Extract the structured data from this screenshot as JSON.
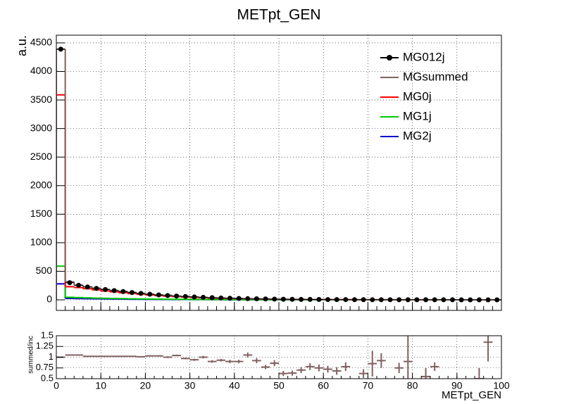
{
  "chart_data": [
    {
      "type": "histogram",
      "title": "METpt_GEN",
      "y_label": "a.u.",
      "bins": [
        0,
        2,
        4,
        6,
        8,
        10,
        12,
        14,
        16,
        18,
        20,
        22,
        24,
        26,
        28,
        30,
        32,
        34,
        36,
        38,
        40,
        42,
        44,
        46,
        48,
        50,
        52,
        54,
        56,
        58,
        60,
        62,
        64,
        66,
        68,
        70,
        72,
        74,
        76,
        78,
        80,
        82,
        84,
        86,
        88,
        90,
        92,
        94,
        96,
        98,
        100
      ],
      "xlim": [
        0,
        100
      ],
      "ylim": [
        -185,
        4635
      ],
      "yticks": [
        0,
        500,
        1000,
        1500,
        2000,
        2500,
        3000,
        3500,
        4000,
        4500
      ],
      "grid": true,
      "legend": "top-right",
      "series": [
        {
          "name": "MG012j",
          "color": "#000000",
          "draw": "points",
          "values": [
            4390,
            300,
            255,
            225,
            200,
            180,
            162,
            145,
            128,
            112,
            98,
            86,
            75,
            66,
            58,
            50,
            44,
            38,
            33,
            28,
            24,
            21,
            18,
            15,
            13,
            11,
            9,
            8,
            7,
            6,
            5,
            4,
            4,
            3,
            3,
            2,
            2,
            2,
            1,
            1,
            1,
            1,
            1,
            1,
            1,
            0,
            0,
            0,
            0,
            0
          ]
        },
        {
          "name": "MGsummed",
          "color": "#806060",
          "draw": "step",
          "values": [
            4390,
            315,
            258,
            228,
            203,
            183,
            164,
            147,
            130,
            113,
            100,
            86,
            78,
            65,
            59,
            52,
            43,
            37,
            32,
            26,
            23,
            19,
            17,
            14,
            12,
            10,
            8,
            7,
            6,
            5,
            4,
            3,
            3,
            2,
            2,
            2,
            1,
            1,
            1,
            1,
            1,
            1,
            1,
            1,
            1,
            0,
            0,
            0,
            0,
            0
          ]
        },
        {
          "name": "MG0j",
          "color": "#ff0000",
          "draw": "step",
          "values": [
            3590,
            230,
            215,
            195,
            175,
            155,
            140,
            125,
            110,
            97,
            85,
            74,
            65,
            56,
            48,
            42,
            36,
            31,
            27,
            23,
            20,
            17,
            15,
            13,
            11,
            9,
            8,
            7,
            6,
            5,
            4,
            4,
            3,
            3,
            2,
            2,
            2,
            1,
            1,
            1,
            1,
            1,
            1,
            0,
            0,
            0,
            0,
            0,
            0,
            0
          ]
        },
        {
          "name": "MG1j",
          "color": "#00cc00",
          "draw": "step",
          "values": [
            590,
            45,
            40,
            35,
            30,
            27,
            24,
            21,
            18,
            16,
            14,
            12,
            10,
            9,
            8,
            7,
            6,
            5,
            5,
            4,
            3,
            3,
            3,
            2,
            2,
            2,
            1,
            1,
            1,
            1,
            1,
            1,
            0,
            0,
            0,
            0,
            0,
            0,
            0,
            0,
            0,
            0,
            0,
            0,
            0,
            0,
            0,
            0,
            0,
            0
          ]
        },
        {
          "name": "MG2j",
          "color": "#0000cc",
          "draw": "step",
          "values": [
            280,
            25,
            22,
            20,
            18,
            16,
            14,
            12,
            10,
            9,
            8,
            7,
            6,
            5,
            5,
            4,
            4,
            3,
            3,
            2,
            2,
            2,
            2,
            1,
            1,
            1,
            1,
            1,
            1,
            0,
            0,
            0,
            0,
            0,
            0,
            0,
            0,
            0,
            0,
            0,
            0,
            0,
            0,
            0,
            0,
            0,
            0,
            0,
            0,
            0
          ]
        }
      ]
    },
    {
      "type": "ratio",
      "x_label": "METpt_GEN",
      "y_label": "summed/inc",
      "xlim": [
        0,
        100
      ],
      "xticks": [
        0,
        10,
        20,
        30,
        40,
        50,
        60,
        70,
        80,
        90,
        100
      ],
      "ylim": [
        0.5,
        1.5
      ],
      "yticks": [
        {
          "value": 0.5,
          "label": "0.5"
        },
        {
          "value": 0.75,
          "label": "0.75"
        },
        1,
        {
          "value": 1.25,
          "label": "1.25"
        },
        {
          "value": 1.5,
          "label": "1.5"
        }
      ],
      "grid": true,
      "series": [
        {
          "color": "#806060",
          "values": [
            1.0,
            1.05,
            1.05,
            1.02,
            1.02,
            1.02,
            1.02,
            1.02,
            1.02,
            1.01,
            1.03,
            1.03,
            1.0,
            1.04,
            0.97,
            0.94,
            1.0,
            0.9,
            0.93,
            0.9,
            0.9,
            1.05,
            0.92,
            0.77,
            0.86,
            0.62,
            0.63,
            0.7,
            0.78,
            0.75,
            0.72,
            0.68,
            0.78,
            null,
            0.62,
            0.85,
            0.92,
            null,
            0.75,
            0.9,
            null,
            0.55,
            0.78,
            null,
            null,
            null,
            null,
            0.5,
            1.35,
            null
          ],
          "errors": [
            0.005,
            0.01,
            0.01,
            0.01,
            0.01,
            0.01,
            0.01,
            0.01,
            0.01,
            0.01,
            0.015,
            0.015,
            0.02,
            0.02,
            0.02,
            0.025,
            0.03,
            0.03,
            0.03,
            0.04,
            0.04,
            0.06,
            0.06,
            0.05,
            0.07,
            0.06,
            0.06,
            0.07,
            0.08,
            0.08,
            0.08,
            0.09,
            0.1,
            null,
            0.1,
            0.3,
            0.17,
            null,
            0.12,
            0.6,
            null,
            0.2,
            0.1,
            null,
            null,
            null,
            null,
            0.25,
            0.45,
            null
          ]
        }
      ]
    }
  ]
}
